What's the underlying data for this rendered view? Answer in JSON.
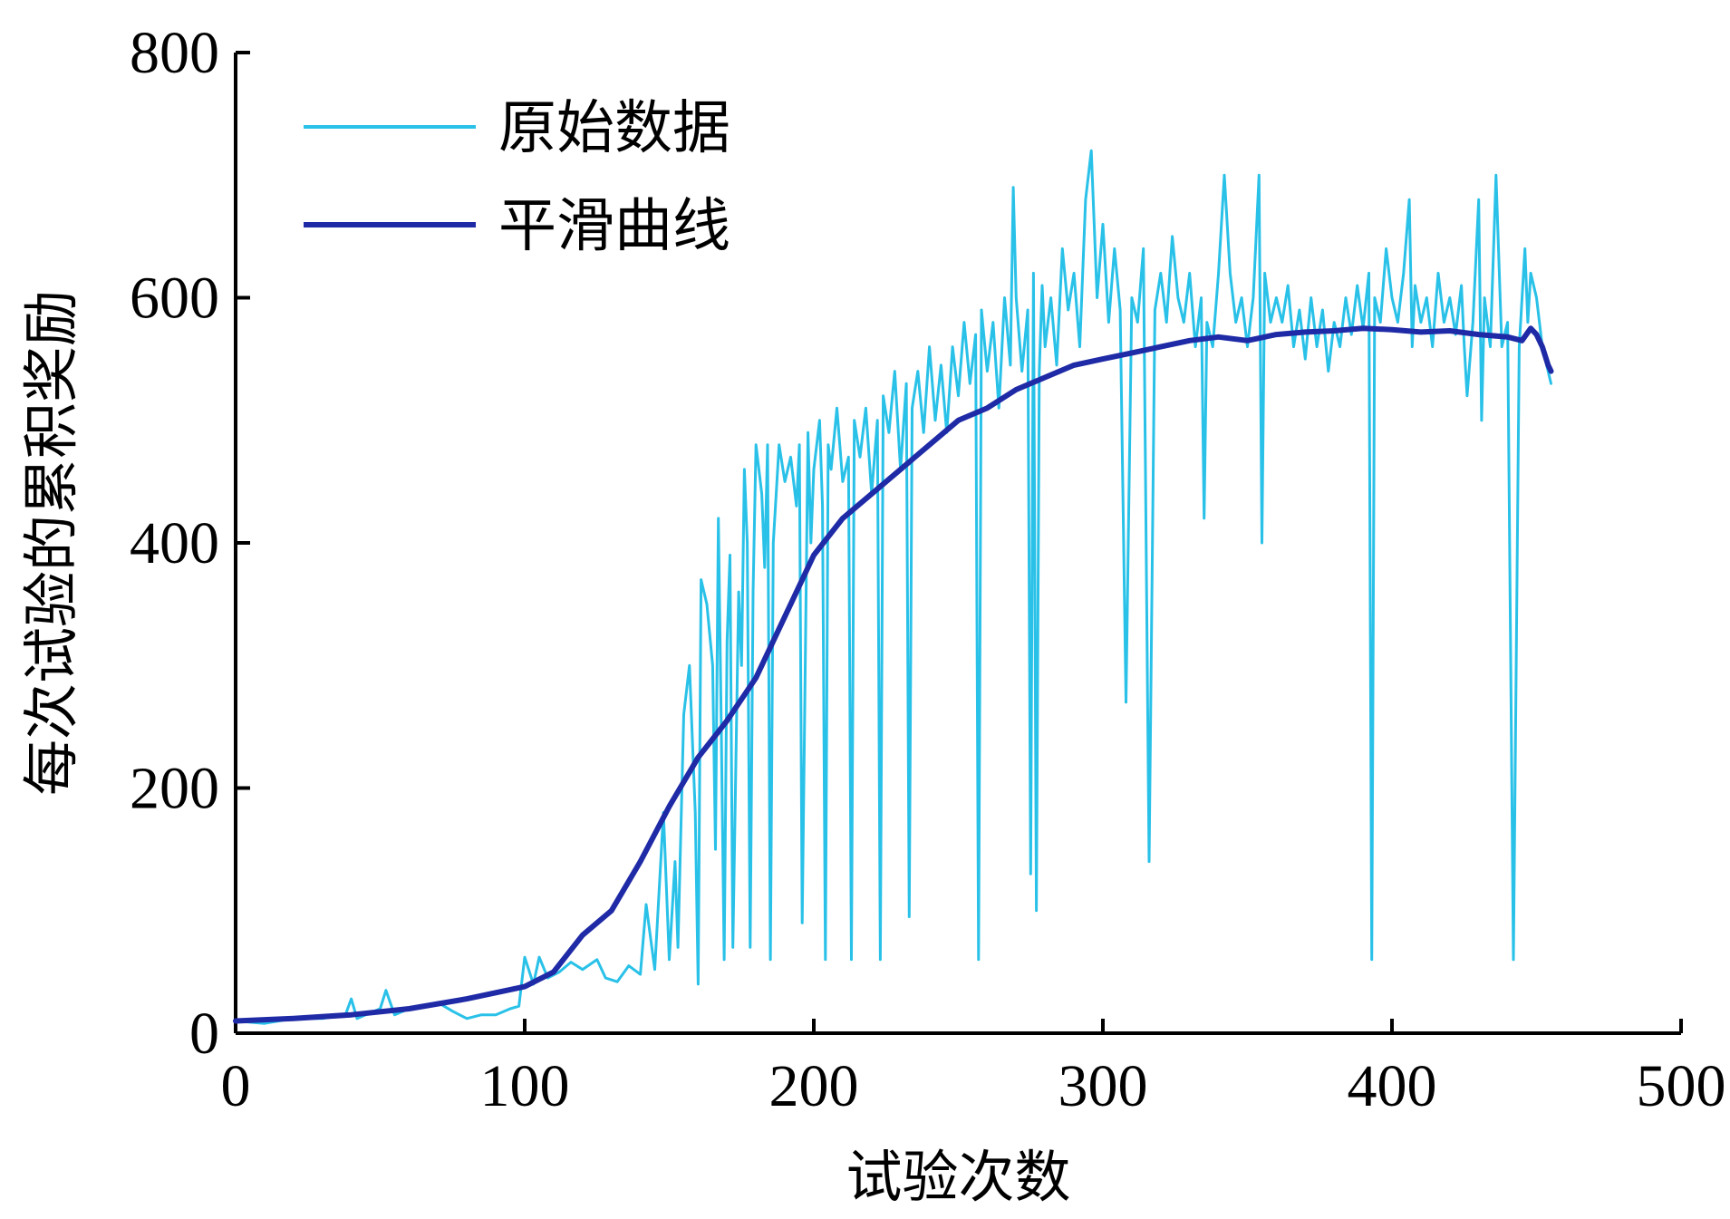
{
  "chart_data": {
    "type": "line",
    "xlabel": "试验次数",
    "ylabel": "每次试验的累积奖励",
    "xlim": [
      0,
      500
    ],
    "ylim": [
      0,
      800
    ],
    "x_ticks": [
      0,
      100,
      200,
      300,
      400,
      500
    ],
    "y_ticks": [
      0,
      200,
      400,
      600,
      800
    ],
    "grid": false,
    "legend_position": "top-left",
    "series": [
      {
        "name": "原始数据",
        "color": "#29c1e8",
        "points": [
          [
            0,
            10
          ],
          [
            10,
            8
          ],
          [
            20,
            12
          ],
          [
            30,
            12
          ],
          [
            38,
            15
          ],
          [
            40,
            28
          ],
          [
            42,
            12
          ],
          [
            50,
            20
          ],
          [
            52,
            35
          ],
          [
            55,
            15
          ],
          [
            60,
            20
          ],
          [
            65,
            22
          ],
          [
            70,
            25
          ],
          [
            75,
            18
          ],
          [
            80,
            12
          ],
          [
            85,
            15
          ],
          [
            90,
            15
          ],
          [
            95,
            20
          ],
          [
            98,
            22
          ],
          [
            100,
            62
          ],
          [
            103,
            40
          ],
          [
            105,
            62
          ],
          [
            108,
            45
          ],
          [
            112,
            50
          ],
          [
            116,
            58
          ],
          [
            120,
            52
          ],
          [
            125,
            60
          ],
          [
            128,
            45
          ],
          [
            132,
            42
          ],
          [
            136,
            55
          ],
          [
            140,
            48
          ],
          [
            142,
            105
          ],
          [
            145,
            52
          ],
          [
            148,
            180
          ],
          [
            150,
            60
          ],
          [
            152,
            140
          ],
          [
            153,
            70
          ],
          [
            155,
            260
          ],
          [
            157,
            300
          ],
          [
            159,
            180
          ],
          [
            160,
            40
          ],
          [
            161,
            370
          ],
          [
            163,
            350
          ],
          [
            165,
            300
          ],
          [
            166,
            150
          ],
          [
            167,
            420
          ],
          [
            168,
            250
          ],
          [
            169,
            60
          ],
          [
            170,
            320
          ],
          [
            171,
            390
          ],
          [
            172,
            70
          ],
          [
            174,
            360
          ],
          [
            175,
            300
          ],
          [
            176,
            460
          ],
          [
            177,
            400
          ],
          [
            178,
            70
          ],
          [
            179,
            360
          ],
          [
            180,
            480
          ],
          [
            182,
            440
          ],
          [
            183,
            380
          ],
          [
            184,
            480
          ],
          [
            185,
            60
          ],
          [
            186,
            400
          ],
          [
            188,
            480
          ],
          [
            190,
            450
          ],
          [
            192,
            470
          ],
          [
            194,
            430
          ],
          [
            195,
            480
          ],
          [
            196,
            90
          ],
          [
            198,
            490
          ],
          [
            199,
            400
          ],
          [
            200,
            460
          ],
          [
            202,
            500
          ],
          [
            203,
            430
          ],
          [
            204,
            60
          ],
          [
            205,
            480
          ],
          [
            206,
            460
          ],
          [
            208,
            510
          ],
          [
            210,
            450
          ],
          [
            212,
            470
          ],
          [
            213,
            60
          ],
          [
            214,
            500
          ],
          [
            216,
            470
          ],
          [
            218,
            510
          ],
          [
            220,
            440
          ],
          [
            222,
            500
          ],
          [
            223,
            60
          ],
          [
            224,
            520
          ],
          [
            226,
            490
          ],
          [
            228,
            540
          ],
          [
            230,
            460
          ],
          [
            232,
            530
          ],
          [
            233,
            95
          ],
          [
            234,
            510
          ],
          [
            236,
            540
          ],
          [
            238,
            490
          ],
          [
            240,
            560
          ],
          [
            242,
            500
          ],
          [
            244,
            545
          ],
          [
            246,
            490
          ],
          [
            248,
            560
          ],
          [
            250,
            520
          ],
          [
            252,
            580
          ],
          [
            254,
            530
          ],
          [
            256,
            570
          ],
          [
            257,
            60
          ],
          [
            258,
            590
          ],
          [
            260,
            540
          ],
          [
            262,
            580
          ],
          [
            264,
            510
          ],
          [
            266,
            600
          ],
          [
            268,
            545
          ],
          [
            269,
            690
          ],
          [
            270,
            600
          ],
          [
            272,
            540
          ],
          [
            274,
            590
          ],
          [
            275,
            130
          ],
          [
            276,
            620
          ],
          [
            277,
            100
          ],
          [
            278,
            540
          ],
          [
            279,
            610
          ],
          [
            280,
            560
          ],
          [
            282,
            600
          ],
          [
            284,
            545
          ],
          [
            286,
            640
          ],
          [
            288,
            590
          ],
          [
            290,
            620
          ],
          [
            292,
            560
          ],
          [
            294,
            680
          ],
          [
            296,
            720
          ],
          [
            298,
            600
          ],
          [
            300,
            660
          ],
          [
            302,
            580
          ],
          [
            304,
            640
          ],
          [
            306,
            590
          ],
          [
            308,
            270
          ],
          [
            310,
            600
          ],
          [
            312,
            580
          ],
          [
            314,
            640
          ],
          [
            316,
            140
          ],
          [
            318,
            590
          ],
          [
            320,
            620
          ],
          [
            322,
            580
          ],
          [
            324,
            650
          ],
          [
            326,
            600
          ],
          [
            328,
            580
          ],
          [
            330,
            620
          ],
          [
            332,
            560
          ],
          [
            334,
            600
          ],
          [
            335,
            420
          ],
          [
            336,
            580
          ],
          [
            338,
            560
          ],
          [
            340,
            620
          ],
          [
            342,
            700
          ],
          [
            344,
            620
          ],
          [
            346,
            580
          ],
          [
            348,
            600
          ],
          [
            350,
            560
          ],
          [
            352,
            600
          ],
          [
            354,
            700
          ],
          [
            355,
            400
          ],
          [
            356,
            620
          ],
          [
            358,
            580
          ],
          [
            360,
            600
          ],
          [
            362,
            580
          ],
          [
            364,
            610
          ],
          [
            366,
            560
          ],
          [
            368,
            590
          ],
          [
            370,
            550
          ],
          [
            372,
            600
          ],
          [
            374,
            560
          ],
          [
            376,
            590
          ],
          [
            378,
            540
          ],
          [
            380,
            580
          ],
          [
            382,
            560
          ],
          [
            384,
            600
          ],
          [
            386,
            570
          ],
          [
            388,
            610
          ],
          [
            390,
            575
          ],
          [
            392,
            620
          ],
          [
            393,
            60
          ],
          [
            394,
            600
          ],
          [
            396,
            580
          ],
          [
            398,
            640
          ],
          [
            400,
            600
          ],
          [
            402,
            580
          ],
          [
            404,
            620
          ],
          [
            406,
            680
          ],
          [
            407,
            560
          ],
          [
            408,
            610
          ],
          [
            410,
            580
          ],
          [
            412,
            600
          ],
          [
            414,
            560
          ],
          [
            416,
            620
          ],
          [
            418,
            580
          ],
          [
            420,
            600
          ],
          [
            422,
            570
          ],
          [
            424,
            610
          ],
          [
            425,
            560
          ],
          [
            426,
            520
          ],
          [
            428,
            580
          ],
          [
            430,
            680
          ],
          [
            431,
            500
          ],
          [
            432,
            600
          ],
          [
            434,
            560
          ],
          [
            436,
            700
          ],
          [
            438,
            560
          ],
          [
            440,
            580
          ],
          [
            442,
            60
          ],
          [
            444,
            560
          ],
          [
            446,
            640
          ],
          [
            447,
            580
          ],
          [
            448,
            620
          ],
          [
            450,
            600
          ],
          [
            452,
            560
          ],
          [
            454,
            540
          ],
          [
            455,
            530
          ]
        ]
      },
      {
        "name": "平滑曲线",
        "color": "#1f2aa6",
        "points": [
          [
            0,
            10
          ],
          [
            20,
            12
          ],
          [
            40,
            15
          ],
          [
            60,
            20
          ],
          [
            80,
            28
          ],
          [
            100,
            38
          ],
          [
            110,
            50
          ],
          [
            120,
            80
          ],
          [
            130,
            100
          ],
          [
            140,
            140
          ],
          [
            150,
            185
          ],
          [
            160,
            225
          ],
          [
            170,
            255
          ],
          [
            180,
            290
          ],
          [
            190,
            340
          ],
          [
            200,
            390
          ],
          [
            210,
            420
          ],
          [
            220,
            440
          ],
          [
            230,
            460
          ],
          [
            240,
            480
          ],
          [
            250,
            500
          ],
          [
            260,
            510
          ],
          [
            270,
            525
          ],
          [
            280,
            535
          ],
          [
            290,
            545
          ],
          [
            300,
            550
          ],
          [
            310,
            555
          ],
          [
            320,
            560
          ],
          [
            330,
            565
          ],
          [
            340,
            568
          ],
          [
            350,
            565
          ],
          [
            360,
            570
          ],
          [
            370,
            572
          ],
          [
            380,
            573
          ],
          [
            390,
            575
          ],
          [
            400,
            574
          ],
          [
            410,
            572
          ],
          [
            420,
            573
          ],
          [
            430,
            570
          ],
          [
            440,
            568
          ],
          [
            445,
            565
          ],
          [
            448,
            575
          ],
          [
            450,
            570
          ],
          [
            452,
            560
          ],
          [
            454,
            545
          ],
          [
            455,
            540
          ]
        ]
      }
    ]
  }
}
